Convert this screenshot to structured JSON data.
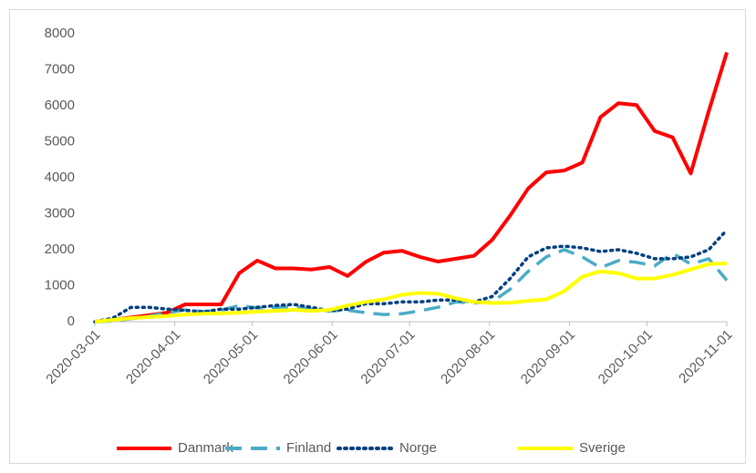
{
  "chart_data": {
    "type": "line",
    "x": [
      "2020-03-01",
      "2020-03-08",
      "2020-03-15",
      "2020-03-22",
      "2020-03-29",
      "2020-04-05",
      "2020-04-12",
      "2020-04-19",
      "2020-04-26",
      "2020-05-03",
      "2020-05-10",
      "2020-05-17",
      "2020-05-24",
      "2020-05-31",
      "2020-06-07",
      "2020-06-14",
      "2020-06-21",
      "2020-06-28",
      "2020-07-05",
      "2020-07-12",
      "2020-07-19",
      "2020-07-26",
      "2020-08-02",
      "2020-08-09",
      "2020-08-16",
      "2020-08-23",
      "2020-08-30",
      "2020-09-06",
      "2020-09-13",
      "2020-09-20",
      "2020-09-27",
      "2020-10-04",
      "2020-10-11",
      "2020-10-18",
      "2020-10-25",
      "2020-11-01"
    ],
    "series": [
      {
        "name": "Danmark",
        "color": "#ff0000",
        "dash": "solid",
        "values": [
          0,
          50,
          120,
          180,
          250,
          480,
          480,
          480,
          1350,
          1700,
          1480,
          1480,
          1450,
          1520,
          1270,
          1660,
          1920,
          1970,
          1800,
          1670,
          1750,
          1830,
          2270,
          2950,
          3700,
          4150,
          4200,
          4420,
          5680,
          6070,
          6020,
          5300,
          5120,
          4120,
          5850,
          7480
        ]
      },
      {
        "name": "Finland",
        "color": "#4bacc6",
        "dash": "dashed",
        "values": [
          0,
          20,
          80,
          150,
          250,
          330,
          280,
          320,
          450,
          380,
          400,
          420,
          350,
          300,
          320,
          250,
          200,
          220,
          300,
          400,
          550,
          520,
          550,
          900,
          1400,
          1800,
          2000,
          1800,
          1500,
          1700,
          1650,
          1550,
          1900,
          1600,
          1750,
          1150
        ]
      },
      {
        "name": "Norge",
        "color": "#003f7f",
        "dash": "dotted",
        "values": [
          0,
          100,
          400,
          400,
          350,
          320,
          270,
          350,
          350,
          400,
          450,
          480,
          400,
          300,
          350,
          500,
          500,
          550,
          550,
          600,
          600,
          550,
          700,
          1200,
          1800,
          2050,
          2100,
          2050,
          1950,
          2000,
          1900,
          1750,
          1750,
          1800,
          2000,
          2550
        ]
      },
      {
        "name": "Sverige",
        "color": "#ffff00",
        "dash": "solid",
        "values": [
          0,
          50,
          100,
          130,
          160,
          200,
          220,
          230,
          250,
          280,
          300,
          330,
          300,
          330,
          450,
          550,
          620,
          750,
          800,
          780,
          650,
          550,
          520,
          530,
          580,
          620,
          850,
          1250,
          1400,
          1350,
          1200,
          1200,
          1300,
          1450,
          1600,
          1620
        ]
      }
    ],
    "xlim": [
      "2020-03-01",
      "2020-11-01"
    ],
    "xticks": [
      "2020-03-01",
      "2020-04-01",
      "2020-05-01",
      "2020-06-01",
      "2020-07-01",
      "2020-08-01",
      "2020-09-01",
      "2020-10-01",
      "2020-11-01"
    ],
    "ylim": [
      0,
      8000
    ],
    "yticks": [
      0,
      1000,
      2000,
      3000,
      4000,
      5000,
      6000,
      7000,
      8000
    ],
    "grid": false,
    "legend": "bottom"
  }
}
